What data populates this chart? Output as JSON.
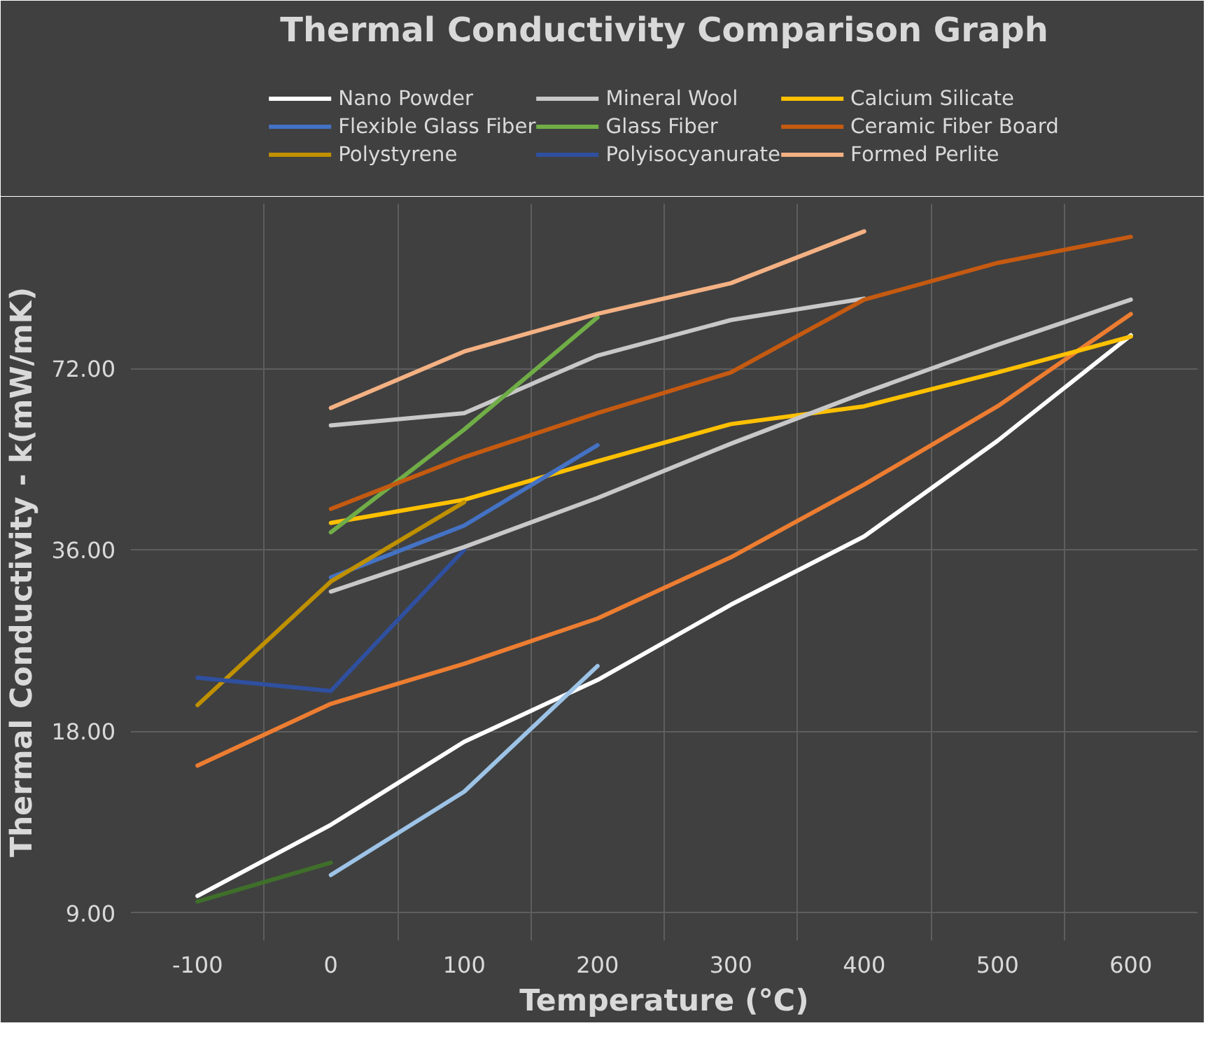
{
  "chart_data": {
    "type": "line",
    "title": "Thermal Conductivity Comparison Graph",
    "xlabel": "Temperature (°C)",
    "ylabel": "Thermal Conductivity - k(mW/mK)",
    "categories": [
      "-100",
      "0",
      "100",
      "200",
      "300",
      "400",
      "500",
      "600"
    ],
    "log": "y",
    "ylim": [
      8.1,
      135
    ],
    "yticks": [
      {
        "value": 9,
        "label": "9.00"
      },
      {
        "value": 18,
        "label": "18.00"
      },
      {
        "value": 36,
        "label": "36.00"
      },
      {
        "value": 72,
        "label": "72.00"
      }
    ],
    "grid": true,
    "legend": "top",
    "line_style": "solid",
    "marker": "none",
    "series": [
      {
        "name": "Nano Powder",
        "color": "#ffffff",
        "values": [
          9.6,
          12.6,
          17.3,
          21.9,
          29.2,
          37.9,
          54.6,
          81.7
        ]
      },
      {
        "color": "#ed7d31",
        "values": [
          15.8,
          20,
          23.3,
          27.7,
          35,
          46.2,
          62.3,
          88.6
        ]
      },
      {
        "name": "Mineral Wool",
        "color": "#c8c8c8",
        "values": [
          null,
          57.9,
          60.7,
          75.6,
          86.6,
          94,
          null,
          null
        ]
      },
      {
        "name": "Calcium Silicate",
        "color": "#ffc000",
        "values": [
          null,
          39.9,
          43.6,
          50.5,
          58.2,
          62.3,
          70.9,
          81.3
        ]
      },
      {
        "name": "Flexible Glass Fiber",
        "color": "#4472c4",
        "values": [
          null,
          32.4,
          39.5,
          53.7,
          null,
          null,
          null,
          null
        ]
      },
      {
        "name": "Glass Fiber",
        "color": "#70ad47",
        "values": [
          null,
          38.5,
          57,
          87.5,
          null,
          null,
          null,
          null
        ]
      },
      {
        "name": "Ceramic Fiber Board",
        "color": "#c55a11",
        "values": [
          null,
          42.1,
          51.3,
          60.7,
          70.9,
          93.6,
          107.7,
          119
        ]
      },
      {
        "name": "Polystyrene",
        "color": "#bf9000",
        "values": [
          19.9,
          31.9,
          43.2,
          null,
          null,
          null,
          null,
          null
        ]
      },
      {
        "name": "Polyisocyanurate",
        "color": "#2f4f9f",
        "values": [
          22.1,
          21,
          36,
          null,
          null,
          null,
          null,
          null
        ]
      },
      {
        "color": "#3f6f2a",
        "values": [
          9.4,
          10.9,
          null,
          null,
          null,
          null,
          null,
          null
        ]
      },
      {
        "color": "#9dc3e6",
        "values": [
          null,
          10.4,
          14.3,
          23.1,
          null,
          null,
          null,
          null
        ]
      },
      {
        "name": "Formed Perlite",
        "color": "#f4b183",
        "values": [
          null,
          61.9,
          76.8,
          88.7,
          99.7,
          121.5,
          null,
          null
        ]
      },
      {
        "color": "#c8c8c8",
        "values": [
          null,
          30.7,
          36.4,
          43.9,
          54,
          65.6,
          78.8,
          93.6
        ]
      }
    ]
  }
}
